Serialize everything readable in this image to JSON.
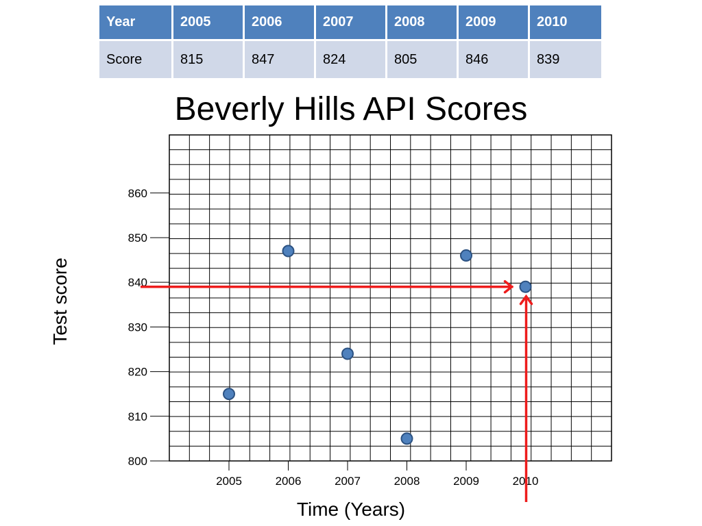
{
  "table": {
    "header_label": "Year",
    "row_label": "Score",
    "years": [
      "2005",
      "2006",
      "2007",
      "2008",
      "2009",
      "2010"
    ],
    "scores": [
      "815",
      "847",
      "824",
      "805",
      "846",
      "839"
    ],
    "colors": {
      "header_bg": "#4f81bd",
      "row_bg": "#d0d8e8"
    }
  },
  "chart_data": {
    "type": "scatter",
    "title": "Beverly Hills API Scores",
    "xlabel": "Time (Years)",
    "ylabel": "Test score",
    "x": [
      2005,
      2006,
      2007,
      2008,
      2009,
      2010
    ],
    "y": [
      815,
      847,
      824,
      805,
      846,
      839
    ],
    "x_ticks": [
      "2005",
      "2006",
      "2007",
      "2008",
      "2009",
      "2010"
    ],
    "y_ticks": [
      "800",
      "810",
      "820",
      "830",
      "840",
      "850",
      "860"
    ],
    "ylim": [
      800,
      873
    ],
    "grid": true,
    "point_color": "#4f81bd",
    "annotation": {
      "type": "red-arrows",
      "x": 2010,
      "y": 839,
      "color": "#ee1c1c"
    }
  }
}
